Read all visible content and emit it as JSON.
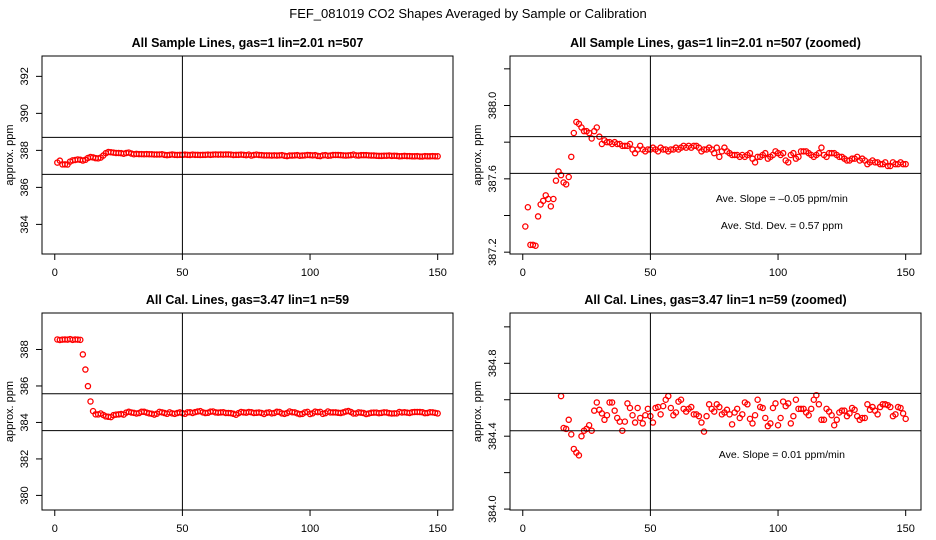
{
  "title": "FEF_081019  CO2 Shapes Averaged by Sample or Calibration",
  "colors": {
    "points": "#ff0000",
    "axes": "#000000",
    "background": "#ffffff"
  },
  "chart_data": [
    {
      "type": "scatter",
      "title": "All Sample Lines, gas=1 lin=2.01 n=507",
      "ylabel": "approx. ppm",
      "xlim": [
        -5,
        156
      ],
      "ylim": [
        382.4,
        393.1
      ],
      "xticks": [
        "0",
        "50",
        "100",
        "150"
      ],
      "yticks": [
        "384",
        "386",
        "388",
        "390",
        "392"
      ],
      "yticks_unlabeled": [],
      "hlines": [
        388.7,
        386.7
      ],
      "vline": 50,
      "series_ref": "sample",
      "annotations": []
    },
    {
      "type": "scatter",
      "title": "All Sample Lines, gas=1 lin=2.01 n=507 (zoomed)",
      "ylabel": "approx. ppm",
      "xlim": [
        -5,
        156
      ],
      "ylim": [
        387.19,
        388.27
      ],
      "xticks": [
        "0",
        "50",
        "100",
        "150"
      ],
      "yticks": [
        "387.2",
        "387.6",
        "388.0"
      ],
      "yticks_unlabeled": [
        387.4,
        387.8,
        388.2
      ],
      "hlines": [
        387.83,
        387.63
      ],
      "vline": 50,
      "series_ref": "sample",
      "annotations": [
        "Ave. Slope =  –0.05  ppm/min",
        "Ave. Std. Dev. = 0.57  ppm"
      ]
    },
    {
      "type": "scatter",
      "title": "All Cal. Lines, gas=3.47 lin=1 n=59",
      "ylabel": "approx. ppm",
      "xlim": [
        -5,
        156
      ],
      "ylim": [
        379.2,
        390.0
      ],
      "xticks": [
        "0",
        "50",
        "100",
        "150"
      ],
      "yticks": [
        "380",
        "382",
        "384",
        "386",
        "388"
      ],
      "yticks_unlabeled": [],
      "hlines": [
        385.57,
        383.55
      ],
      "vline": 50,
      "series_ref": "cal",
      "annotations": []
    },
    {
      "type": "scatter",
      "title": "All Cal. Lines, gas=3.47 lin=1 n=59 (zoomed)",
      "ylabel": "approx. ppm",
      "xlim": [
        -5,
        156
      ],
      "ylim": [
        383.995,
        385.076
      ],
      "xticks": [
        "0",
        "50",
        "100",
        "150"
      ],
      "yticks": [
        "384.0",
        "384.4",
        "384.8"
      ],
      "yticks_unlabeled": [
        384.2,
        384.6,
        385.0
      ],
      "hlines": [
        384.635,
        384.43
      ],
      "vline": 50,
      "series_ref": "cal",
      "annotations": [
        "Ave. Slope =  0.01  ppm/min"
      ]
    }
  ],
  "series": {
    "sample": [
      387.34,
      387.445,
      387.24,
      387.24,
      387.235,
      387.395,
      387.46,
      387.48,
      387.51,
      387.49,
      387.45,
      387.49,
      387.59,
      387.64,
      387.62,
      387.58,
      387.57,
      387.61,
      387.72,
      387.85,
      387.91,
      387.9,
      387.88,
      387.86,
      387.86,
      387.85,
      387.82,
      387.86,
      387.88,
      387.83,
      387.79,
      387.81,
      387.8,
      387.8,
      387.79,
      387.8,
      387.79,
      387.79,
      387.78,
      387.78,
      387.78,
      387.79,
      387.76,
      387.74,
      387.76,
      387.78,
      387.76,
      387.75,
      387.76,
      387.76,
      387.77,
      387.76,
      387.75,
      387.77,
      387.76,
      387.76,
      387.75,
      387.76,
      387.76,
      387.77,
      387.76,
      387.77,
      387.78,
      387.77,
      387.78,
      387.77,
      387.78,
      387.78,
      387.77,
      387.75,
      387.76,
      387.76,
      387.77,
      387.76,
      387.74,
      387.77,
      387.72,
      387.75,
      387.77,
      387.75,
      387.74,
      387.73,
      387.73,
      387.73,
      387.72,
      387.73,
      387.72,
      387.73,
      387.74,
      387.71,
      387.69,
      387.72,
      387.72,
      387.73,
      387.74,
      387.71,
      387.72,
      387.73,
      387.75,
      387.74,
      387.73,
      387.74,
      387.7,
      387.69,
      387.73,
      387.74,
      387.71,
      387.72,
      387.75,
      387.75,
      387.75,
      387.74,
      387.73,
      387.72,
      387.73,
      387.74,
      387.77,
      387.73,
      387.72,
      387.74,
      387.74,
      387.74,
      387.73,
      387.72,
      387.72,
      387.71,
      387.7,
      387.7,
      387.71,
      387.71,
      387.72,
      387.7,
      387.71,
      387.7,
      387.68,
      387.69,
      387.7,
      387.69,
      387.69,
      387.68,
      387.68,
      387.69,
      387.67,
      387.67,
      387.69,
      387.68,
      387.68,
      387.69,
      387.68,
      387.68
    ],
    "cal": [
      388.55,
      388.52,
      388.54,
      388.55,
      388.54,
      388.57,
      388.53,
      388.55,
      388.54,
      388.53,
      387.73,
      386.9,
      385.99,
      385.15,
      384.62,
      384.445,
      384.44,
      384.49,
      384.41,
      384.33,
      384.31,
      384.295,
      384.4,
      384.43,
      384.44,
      384.46,
      384.43,
      384.54,
      384.585,
      384.545,
      384.525,
      384.49,
      384.515,
      384.585,
      384.585,
      384.54,
      384.5,
      384.48,
      384.43,
      384.48,
      384.58,
      384.555,
      384.515,
      384.475,
      384.555,
      384.5,
      384.47,
      384.515,
      384.55,
      384.51,
      384.475,
      384.555,
      384.56,
      384.52,
      384.565,
      384.6,
      384.62,
      384.555,
      384.515,
      384.53,
      384.59,
      384.6,
      384.55,
      384.535,
      384.55,
      384.56,
      384.52,
      384.52,
      384.51,
      384.475,
      384.425,
      384.51,
      384.575,
      384.55,
      384.535,
      384.575,
      384.56,
      384.52,
      384.53,
      384.545,
      384.52,
      384.465,
      384.53,
      384.55,
      384.5,
      384.52,
      384.585,
      384.575,
      384.495,
      384.47,
      384.515,
      384.6,
      384.56,
      384.555,
      384.5,
      384.455,
      384.47,
      384.555,
      384.58,
      384.46,
      384.5,
      384.59,
      384.565,
      384.58,
      384.47,
      384.51,
      384.6,
      384.55,
      384.55,
      384.55,
      384.53,
      384.515,
      384.55,
      384.6,
      384.625,
      384.575,
      384.49,
      384.49,
      384.55,
      384.535,
      384.515,
      384.46,
      384.49,
      384.53,
      384.54,
      384.54,
      384.51,
      384.525,
      384.555,
      384.545,
      384.51,
      384.49,
      384.5,
      384.5,
      384.575,
      384.545,
      384.56,
      384.54,
      384.52,
      384.56,
      384.575,
      384.575,
      384.57,
      384.56,
      384.51,
      384.52,
      384.56,
      384.555,
      384.525,
      384.495
    ]
  }
}
